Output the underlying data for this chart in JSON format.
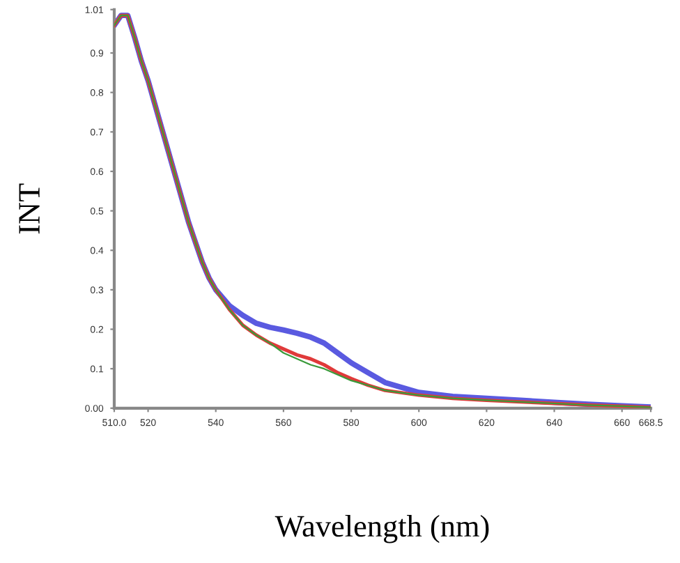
{
  "chart_data": {
    "type": "line",
    "xlabel": "Wavelength (nm)",
    "ylabel": "INT",
    "x": [
      510,
      512,
      514,
      516,
      518,
      520,
      522,
      524,
      526,
      528,
      530,
      532,
      534,
      536,
      538,
      540,
      544,
      548,
      552,
      556,
      560,
      564,
      568,
      572,
      576,
      580,
      585,
      590,
      600,
      610,
      620,
      630,
      640,
      650,
      660,
      668.5
    ],
    "series": [
      {
        "color": "#e03a3a",
        "values": [
          0.97,
          0.995,
          0.995,
          0.94,
          0.88,
          0.83,
          0.77,
          0.71,
          0.65,
          0.59,
          0.53,
          0.47,
          0.42,
          0.37,
          0.33,
          0.3,
          0.25,
          0.21,
          0.185,
          0.165,
          0.15,
          0.135,
          0.125,
          0.11,
          0.09,
          0.075,
          0.058,
          0.045,
          0.033,
          0.025,
          0.02,
          0.016,
          0.012,
          0.008,
          0.005,
          0.002
        ]
      },
      {
        "color": "#5a5ae0",
        "values": [
          0.97,
          0.995,
          0.995,
          0.94,
          0.88,
          0.83,
          0.77,
          0.71,
          0.65,
          0.59,
          0.53,
          0.47,
          0.42,
          0.37,
          0.33,
          0.3,
          0.26,
          0.235,
          0.215,
          0.205,
          0.198,
          0.19,
          0.18,
          0.165,
          0.14,
          0.115,
          0.09,
          0.065,
          0.04,
          0.03,
          0.025,
          0.02,
          0.015,
          0.01,
          0.006,
          0.003
        ]
      },
      {
        "color": "#3a9a3a",
        "values": [
          0.97,
          0.995,
          0.995,
          0.94,
          0.88,
          0.83,
          0.77,
          0.71,
          0.65,
          0.59,
          0.53,
          0.47,
          0.42,
          0.37,
          0.33,
          0.3,
          0.25,
          0.21,
          0.185,
          0.165,
          0.14,
          0.125,
          0.11,
          0.1,
          0.085,
          0.07,
          0.058,
          0.045,
          0.033,
          0.025,
          0.02,
          0.016,
          0.012,
          0.008,
          0.005,
          0.002
        ]
      }
    ],
    "xlim": [
      510,
      668.5
    ],
    "ylim": [
      0,
      1.01
    ],
    "xticks": [
      {
        "value": 510,
        "label": "510.0"
      },
      520,
      540,
      560,
      580,
      600,
      620,
      640,
      660,
      668.5
    ],
    "yticks": [
      {
        "value": 0,
        "label": "0.00"
      },
      0.1,
      0.2,
      0.3,
      0.4,
      0.5,
      0.6,
      0.7,
      0.8,
      0.9,
      1.01
    ],
    "grid": false,
    "legend": false,
    "marker": "none",
    "line_style": "solid"
  }
}
